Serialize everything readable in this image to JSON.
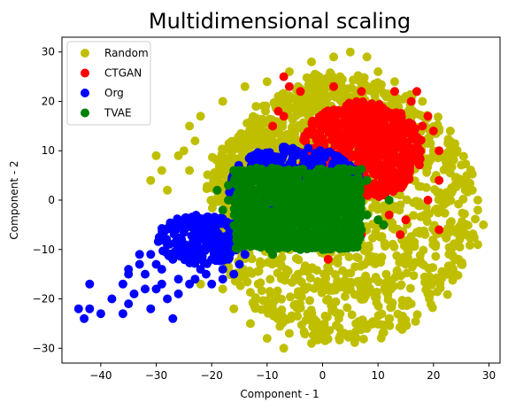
{
  "chart_data": {
    "type": "scatter",
    "title": "Multidimensional scaling",
    "xlabel": "Component - 1",
    "ylabel": "Component - 2",
    "xlim": [
      -47,
      32
    ],
    "ylim": [
      -33,
      33
    ],
    "xticks": [
      -40,
      -30,
      -20,
      -10,
      0,
      10,
      20,
      30
    ],
    "yticks": [
      -30,
      -20,
      -10,
      0,
      10,
      20,
      30
    ],
    "grid": false,
    "legend_position": "top-left",
    "series": [
      {
        "name": "Random",
        "color": "#bfbf00",
        "regions": [
          {
            "shape": "ellipse",
            "cx": 4,
            "cy": -2,
            "rx": 24,
            "ry": 27,
            "count": 1200
          },
          {
            "shape": "ellipse",
            "cx": 2,
            "cy": 12,
            "rx": 14,
            "ry": 14,
            "count": 400
          },
          {
            "shape": "ellipse",
            "cx": -12,
            "cy": 4,
            "rx": 9,
            "ry": 10,
            "count": 250
          }
        ],
        "points": [
          [
            -30,
            9
          ],
          [
            -31,
            4
          ],
          [
            -29,
            6
          ],
          [
            -28,
            2
          ],
          [
            -25,
            10
          ],
          [
            -24,
            15
          ],
          [
            -22,
            17
          ],
          [
            -18,
            20
          ],
          [
            -14,
            23
          ],
          [
            -10,
            24
          ],
          [
            -6,
            26
          ],
          [
            -2,
            28
          ],
          [
            2,
            29
          ],
          [
            5,
            30
          ],
          [
            8,
            29
          ],
          [
            10,
            26
          ],
          [
            13,
            24
          ],
          [
            15,
            21
          ],
          [
            19,
            17
          ],
          [
            21,
            14
          ],
          [
            24,
            10
          ],
          [
            26,
            5
          ],
          [
            28,
            0
          ],
          [
            29,
            -5
          ],
          [
            28,
            -9
          ],
          [
            25,
            -13
          ],
          [
            22,
            -15
          ],
          [
            19,
            -19
          ],
          [
            16,
            -21
          ],
          [
            12,
            -24
          ],
          [
            8,
            -26
          ],
          [
            3,
            -28
          ],
          [
            -2,
            -29
          ],
          [
            -7,
            -30
          ],
          [
            -10,
            -28
          ],
          [
            -13,
            -25
          ],
          [
            -16,
            -22
          ],
          [
            -18,
            -18
          ],
          [
            -17,
            -14
          ],
          [
            -22,
            -17
          ],
          [
            -19,
            8
          ],
          [
            -23,
            12
          ],
          [
            -26,
            9
          ],
          [
            -20,
            0
          ],
          [
            -24,
            6
          ],
          [
            27,
            2
          ],
          [
            28,
            -2
          ],
          [
            26,
            -7
          ],
          [
            23,
            12
          ],
          [
            18,
            20
          ],
          [
            -6,
            -27
          ],
          [
            0,
            -27
          ],
          [
            6,
            -25
          ],
          [
            -12,
            19
          ],
          [
            -8,
            21
          ]
        ]
      },
      {
        "name": "CTGAN",
        "color": "#ff0000",
        "regions": [
          {
            "shape": "ellipse",
            "cx": 7,
            "cy": 10,
            "rx": 11,
            "ry": 10,
            "count": 650
          }
        ],
        "points": [
          [
            -7,
            25
          ],
          [
            -6,
            23
          ],
          [
            2,
            23
          ],
          [
            13,
            22
          ],
          [
            17,
            22
          ],
          [
            19,
            17
          ],
          [
            20,
            14
          ],
          [
            21,
            10
          ],
          [
            -8,
            18
          ],
          [
            -9,
            15
          ],
          [
            -7,
            17
          ],
          [
            21,
            -6
          ],
          [
            14,
            -7
          ],
          [
            11,
            -5
          ],
          [
            7,
            -7
          ],
          [
            1,
            -12
          ],
          [
            -4,
            22
          ],
          [
            7,
            22
          ],
          [
            16,
            20
          ],
          [
            18,
            15
          ],
          [
            21,
            4
          ],
          [
            19,
            0
          ],
          [
            12,
            -3
          ],
          [
            15,
            -4
          ]
        ]
      },
      {
        "name": "Org",
        "color": "#0000ff",
        "regions": [
          {
            "shape": "ellipse",
            "cx": -5,
            "cy": 3,
            "rx": 12,
            "ry": 8,
            "count": 400
          },
          {
            "shape": "ellipse",
            "cx": -22,
            "cy": -8,
            "rx": 8,
            "ry": 5,
            "count": 180
          }
        ],
        "points": [
          [
            -44,
            -22
          ],
          [
            -43,
            -24
          ],
          [
            -42,
            -22
          ],
          [
            -40,
            -23
          ],
          [
            -42,
            -17
          ],
          [
            -38,
            -20
          ],
          [
            -36,
            -23
          ],
          [
            -35,
            -21
          ],
          [
            -34,
            -19
          ],
          [
            -36,
            -17
          ],
          [
            -35,
            -15
          ],
          [
            -33,
            -13
          ],
          [
            -31,
            -11
          ],
          [
            -32,
            -15
          ],
          [
            -29,
            -14
          ],
          [
            -30,
            -18
          ],
          [
            -28,
            -20
          ],
          [
            -31,
            -22
          ],
          [
            -27,
            -24
          ],
          [
            -29,
            -17
          ],
          [
            -26,
            -16
          ],
          [
            -27,
            -12
          ],
          [
            -25,
            -10
          ],
          [
            -24,
            -12
          ],
          [
            -22,
            -14
          ],
          [
            -23,
            -16
          ],
          [
            -21,
            -15
          ],
          [
            -20,
            -12
          ],
          [
            -19,
            -10
          ],
          [
            -18,
            -14
          ],
          [
            -17,
            -12
          ],
          [
            -16,
            -10
          ],
          [
            -33,
            -11
          ],
          [
            -35,
            -14
          ],
          [
            -26,
            -19
          ],
          [
            -24,
            -17
          ],
          [
            -28,
            -9
          ],
          [
            -30,
            -13
          ],
          [
            -32,
            -18
          ],
          [
            -20,
            -17
          ],
          [
            -18,
            -16
          ],
          [
            -16,
            -15
          ],
          [
            -15,
            -13
          ],
          [
            -14,
            -11
          ]
        ]
      },
      {
        "name": "TVAE",
        "color": "#008000",
        "regions": [
          {
            "shape": "rect",
            "x0": -16,
            "x1": 7,
            "y0": -10,
            "y1": 6.5,
            "count": 900
          }
        ],
        "points": [
          [
            -17,
            0
          ],
          [
            -18,
            -2
          ],
          [
            -17,
            3
          ],
          [
            -19,
            2
          ],
          [
            -16,
            6
          ],
          [
            -15,
            6
          ],
          [
            8,
            4
          ],
          [
            8,
            -3
          ],
          [
            7,
            -6
          ],
          [
            10,
            -4
          ],
          [
            11,
            -5
          ],
          [
            12,
            0
          ],
          [
            -9,
            -11
          ],
          [
            -4,
            -10
          ],
          [
            0,
            -10
          ],
          [
            3,
            -9
          ]
        ]
      }
    ]
  }
}
